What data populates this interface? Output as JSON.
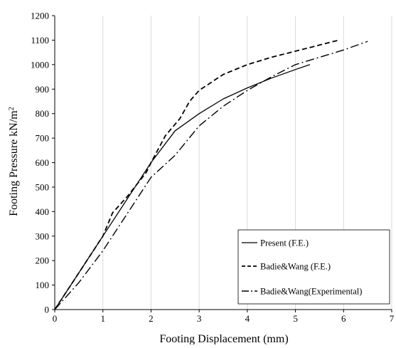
{
  "chart_data": {
    "type": "line",
    "title": "",
    "xlabel": "Footing Displacement  (mm)",
    "ylabel_main": "Footing Pressure kN/m",
    "ylabel_sup": "2",
    "xlim": [
      0,
      7
    ],
    "ylim": [
      0,
      1200
    ],
    "xticks": [
      "0",
      "1",
      "2",
      "3",
      "4",
      "5",
      "6",
      "7"
    ],
    "yticks": [
      "0",
      "100",
      "200",
      "300",
      "400",
      "500",
      "600",
      "700",
      "800",
      "900",
      "1000",
      "1100",
      "1200"
    ],
    "grid": "vertical",
    "legend_position": "bottom-right",
    "series": [
      {
        "name": "Present (F.E.)",
        "style": "solid",
        "x": [
          0,
          0.5,
          1.0,
          1.5,
          2.0,
          2.5,
          3.0,
          3.5,
          4.0,
          4.5,
          5.0,
          5.3
        ],
        "y": [
          0,
          150,
          300,
          450,
          600,
          730,
          800,
          860,
          905,
          945,
          980,
          1000
        ]
      },
      {
        "name": "Badie&Wang (F.E.)",
        "style": "dashed",
        "x": [
          0,
          0.5,
          1.0,
          1.2,
          1.5,
          1.9,
          2.0,
          2.3,
          2.6,
          2.8,
          3.0,
          3.5,
          4.0,
          4.5,
          5.0,
          5.5,
          5.9
        ],
        "y": [
          0,
          150,
          300,
          395,
          460,
          560,
          600,
          710,
          780,
          850,
          895,
          960,
          1000,
          1030,
          1055,
          1080,
          1100
        ]
      },
      {
        "name": "Badie&Wang(Experimental)",
        "style": "dashdot",
        "x": [
          0,
          0.5,
          1.0,
          1.5,
          2.0,
          2.5,
          3.0,
          3.5,
          4.0,
          4.5,
          5.0,
          5.5,
          6.0,
          6.5
        ],
        "y": [
          0,
          110,
          240,
          390,
          540,
          630,
          750,
          830,
          895,
          950,
          1000,
          1030,
          1060,
          1095
        ]
      }
    ]
  }
}
